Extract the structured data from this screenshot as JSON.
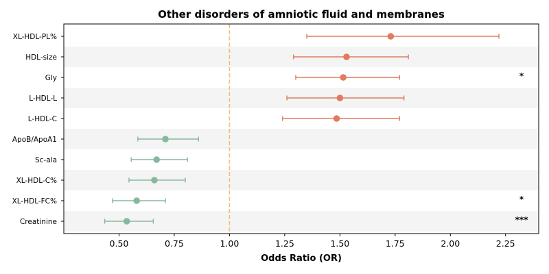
{
  "chart_data": {
    "type": "forest",
    "title": "Other disorders of amniotic fluid and membranes",
    "xlabel": "Odds Ratio (OR)",
    "ylabel": "",
    "xlim": [
      0.25,
      2.4
    ],
    "xticks": [
      0.5,
      0.75,
      1.0,
      1.25,
      1.5,
      1.75,
      2.0,
      2.25
    ],
    "xtick_labels": [
      "0.50",
      "0.75",
      "1.00",
      "1.25",
      "1.50",
      "1.75",
      "2.00",
      "2.25"
    ],
    "reference_line": 1.0,
    "alternating_row_shading": true,
    "grid": false,
    "colors": {
      "risk": "#e07b5f",
      "protective": "#86b89d",
      "reference": "#f0c07a",
      "band": "#f4f4f4"
    },
    "rows": [
      {
        "label": "XL-HDL-PL%",
        "or": 1.73,
        "lo": 1.35,
        "hi": 2.22,
        "sig": "",
        "group": "risk"
      },
      {
        "label": "HDL-size",
        "or": 1.53,
        "lo": 1.29,
        "hi": 1.81,
        "sig": "",
        "group": "risk"
      },
      {
        "label": "Gly",
        "or": 1.515,
        "lo": 1.3,
        "hi": 1.77,
        "sig": "*",
        "group": "risk"
      },
      {
        "label": "L-HDL-L",
        "or": 1.5,
        "lo": 1.26,
        "hi": 1.79,
        "sig": "",
        "group": "risk"
      },
      {
        "label": "L-HDL-C",
        "or": 1.485,
        "lo": 1.24,
        "hi": 1.77,
        "sig": "",
        "group": "risk"
      },
      {
        "label": "ApoB/ApoA1",
        "or": 0.71,
        "lo": 0.585,
        "hi": 0.86,
        "sig": "",
        "group": "protective"
      },
      {
        "label": "Sc-ala",
        "or": 0.67,
        "lo": 0.555,
        "hi": 0.81,
        "sig": "",
        "group": "protective"
      },
      {
        "label": "XL-HDL-C%",
        "or": 0.66,
        "lo": 0.545,
        "hi": 0.8,
        "sig": "",
        "group": "protective"
      },
      {
        "label": "XL-HDL-FC%",
        "or": 0.58,
        "lo": 0.47,
        "hi": 0.71,
        "sig": "*",
        "group": "protective"
      },
      {
        "label": "Creatinine",
        "or": 0.535,
        "lo": 0.435,
        "hi": 0.655,
        "sig": "***",
        "group": "protective"
      }
    ]
  }
}
